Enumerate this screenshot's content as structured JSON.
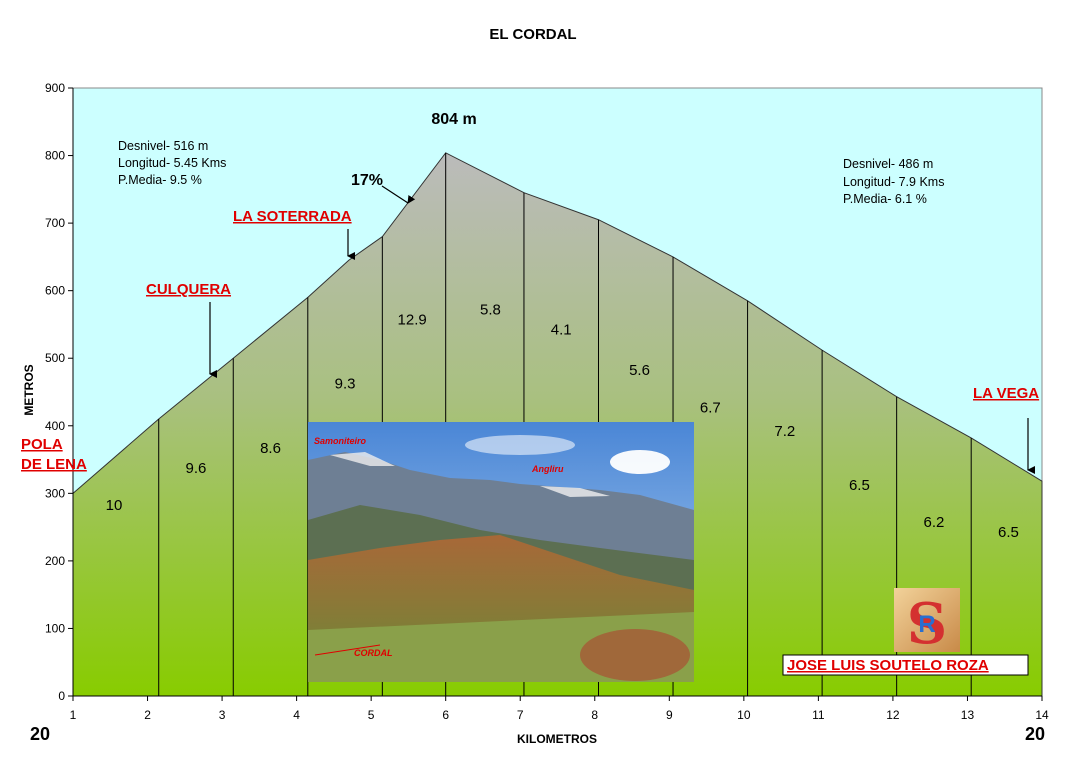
{
  "chart_data": {
    "type": "area",
    "title": "EL CORDAL",
    "xlabel": "KILOMETROS",
    "ylabel": "METROS",
    "xlim": [
      1,
      14
    ],
    "ylim": [
      0,
      900
    ],
    "x_ticks": [
      "1",
      "2",
      "3",
      "4",
      "5",
      "6",
      "7",
      "8",
      "9",
      "10",
      "11",
      "12",
      "13",
      "14"
    ],
    "y_ticks": [
      "0",
      "100",
      "200",
      "300",
      "400",
      "500",
      "600",
      "700",
      "800",
      "900"
    ],
    "profile": [
      {
        "x": 1.0,
        "y": 300
      },
      {
        "x": 2.15,
        "y": 410
      },
      {
        "x": 3.15,
        "y": 500
      },
      {
        "x": 4.15,
        "y": 590
      },
      {
        "x": 4.7,
        "y": 645
      },
      {
        "x": 5.15,
        "y": 680
      },
      {
        "x": 6.0,
        "y": 804
      },
      {
        "x": 7.05,
        "y": 745
      },
      {
        "x": 8.05,
        "y": 705
      },
      {
        "x": 9.05,
        "y": 650
      },
      {
        "x": 10.05,
        "y": 585
      },
      {
        "x": 11.05,
        "y": 512
      },
      {
        "x": 12.05,
        "y": 443
      },
      {
        "x": 13.05,
        "y": 382
      },
      {
        "x": 14.0,
        "y": 318
      }
    ],
    "dividers_x": [
      2.15,
      3.15,
      4.15,
      5.15,
      6.0,
      7.05,
      8.05,
      9.05,
      10.05,
      11.05,
      12.05,
      13.05
    ],
    "segment_labels": [
      {
        "text": "10",
        "x": 1.55,
        "y": 275
      },
      {
        "text": "9.6",
        "x": 2.65,
        "y": 330
      },
      {
        "text": "8.6",
        "x": 3.65,
        "y": 360
      },
      {
        "text": "9.3",
        "x": 4.65,
        "y": 455
      },
      {
        "text": "12.9",
        "x": 5.55,
        "y": 550
      },
      {
        "text": "5.8",
        "x": 6.6,
        "y": 565
      },
      {
        "text": "4.1",
        "x": 7.55,
        "y": 535
      },
      {
        "text": "5.6",
        "x": 8.6,
        "y": 475
      },
      {
        "text": "6.7",
        "x": 9.55,
        "y": 420
      },
      {
        "text": "7.2",
        "x": 10.55,
        "y": 385
      },
      {
        "text": "6.5",
        "x": 11.55,
        "y": 305
      },
      {
        "text": "6.2",
        "x": 12.55,
        "y": 250
      },
      {
        "text": "6.5",
        "x": 13.55,
        "y": 235
      }
    ],
    "annotations": {
      "peak_label": "804 m",
      "max_grade": "17%",
      "left_stats": [
        "Desnivel- 516 m",
        "Longitud- 5.45 Kms",
        "P.Media- 9.5 %"
      ],
      "right_stats": [
        "Desnivel- 486 m",
        "Longitud- 7.9 Kms",
        "P.Media- 6.1 %"
      ]
    },
    "places": {
      "pola_line1": "POLA",
      "pola_line2": "DE LENA",
      "culquera": "CULQUERA",
      "soterrada": "LA SOTERRADA",
      "vega": "LA VEGA"
    },
    "colors": {
      "sky": "#ccffff",
      "mountain_top": "#bdbdbd",
      "mountain_bottom": "#8cd400"
    }
  },
  "corner_left": "20",
  "corner_right": "20",
  "photo": {
    "label_samoniteiro": "Samoniteiro",
    "label_angliru": "Angliru",
    "label_cordal": "CORDAL"
  },
  "author": "JOSE LUIS SOUTELO ROZA"
}
